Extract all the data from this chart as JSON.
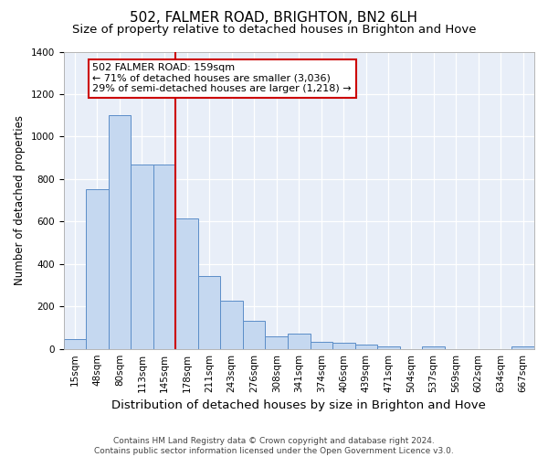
{
  "title1": "502, FALMER ROAD, BRIGHTON, BN2 6LH",
  "title2": "Size of property relative to detached houses in Brighton and Hove",
  "xlabel": "Distribution of detached houses by size in Brighton and Hove",
  "ylabel": "Number of detached properties",
  "categories": [
    "15sqm",
    "48sqm",
    "80sqm",
    "113sqm",
    "145sqm",
    "178sqm",
    "211sqm",
    "243sqm",
    "276sqm",
    "308sqm",
    "341sqm",
    "374sqm",
    "406sqm",
    "439sqm",
    "471sqm",
    "504sqm",
    "537sqm",
    "569sqm",
    "602sqm",
    "634sqm",
    "667sqm"
  ],
  "values": [
    47,
    750,
    1100,
    870,
    870,
    615,
    345,
    225,
    130,
    60,
    70,
    32,
    28,
    18,
    13,
    0,
    10,
    0,
    0,
    0,
    12
  ],
  "bar_color": "#c5d8f0",
  "bar_edge_color": "#5b8dc8",
  "background_color": "#e8eef8",
  "plot_bg_color": "#e8eef8",
  "grid_color": "#ffffff",
  "annotation_box_text": "502 FALMER ROAD: 159sqm\n← 71% of detached houses are smaller (3,036)\n29% of semi-detached houses are larger (1,218) →",
  "annotation_box_color": "#ffffff",
  "annotation_box_edge_color": "#cc0000",
  "vline_bin_index": 4.5,
  "vline_color": "#cc0000",
  "ylim": [
    0,
    1400
  ],
  "yticks": [
    0,
    200,
    400,
    600,
    800,
    1000,
    1200,
    1400
  ],
  "footer": "Contains HM Land Registry data © Crown copyright and database right 2024.\nContains public sector information licensed under the Open Government Licence v3.0.",
  "title1_fontsize": 11,
  "title2_fontsize": 9.5,
  "xlabel_fontsize": 9.5,
  "ylabel_fontsize": 8.5,
  "tick_fontsize": 7.5,
  "annotation_fontsize": 8,
  "footer_fontsize": 6.5
}
